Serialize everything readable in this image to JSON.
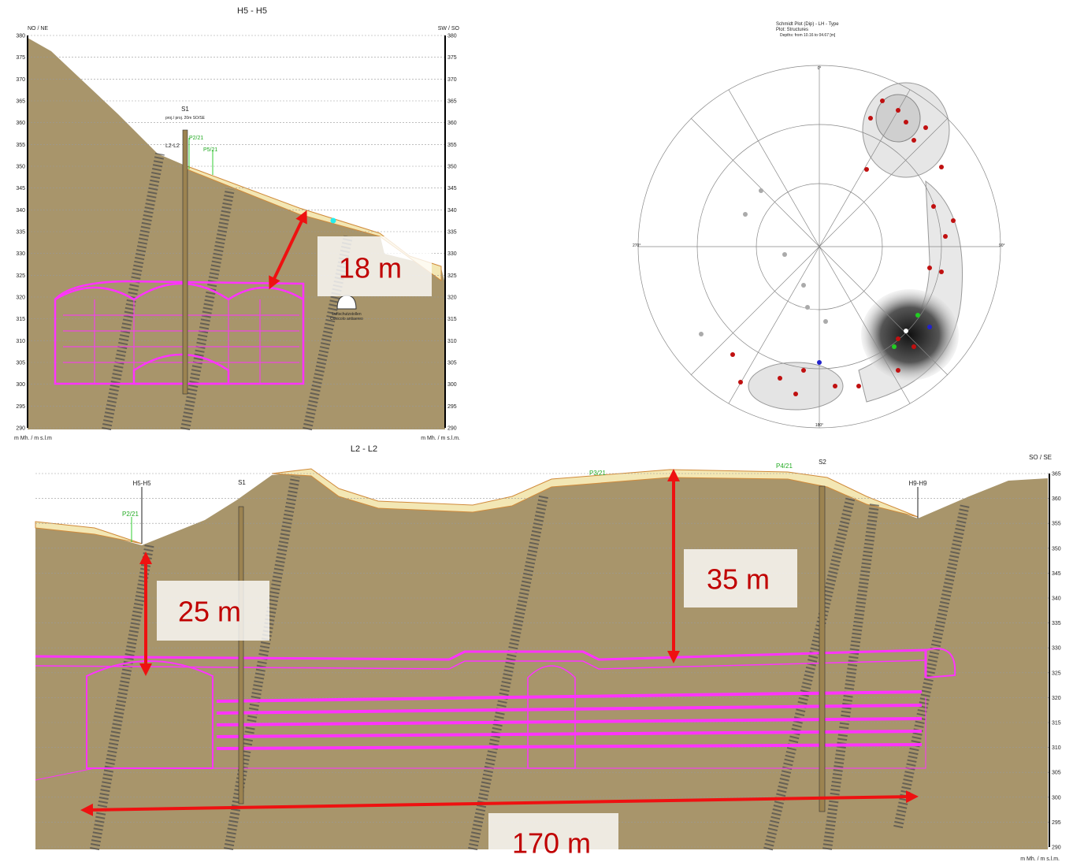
{
  "top_section": {
    "title": "H5 - H5",
    "left_label": "NO / NE",
    "right_label": "SW / SO",
    "elevations": [
      380,
      375,
      370,
      365,
      360,
      355,
      350,
      345,
      340,
      335,
      330,
      325,
      320,
      315,
      310,
      305,
      300,
      295,
      290
    ],
    "unit_left": "m Mh. / m s.l.m",
    "unit_right": "m Mh. / m s.l.m.",
    "borehole": "S1",
    "borehole_note": "proj./ proj. 20m SO/SE",
    "section_mark": "L2-L2",
    "point_1": "P2/21",
    "point_2": "P5/21",
    "tunnel_label_1": "Luftschutzstollen",
    "tunnel_label_2": "Cunicolo antiaereo",
    "distance": "18 m"
  },
  "stereonet": {
    "title": "Schmidt Plot (Dip) - LH - Type",
    "subtitle": "Plot: Structures",
    "depths": "Depths: from 10.16 to 04.67 [m]",
    "north": "0°",
    "east": "90°",
    "south": "180°",
    "west": "270°"
  },
  "bottom_section": {
    "title": "L2 - L2",
    "right_label": "SO / SE",
    "elevations": [
      365,
      360,
      355,
      350,
      345,
      340,
      335,
      330,
      325,
      320,
      315,
      310,
      305,
      300,
      295,
      290
    ],
    "unit_right": "m Mh. / m s.l.m.",
    "marker_1": "H5-H5",
    "marker_2": "S1",
    "marker_3": "S2",
    "marker_4": "H9-H9",
    "point_1": "P2/21",
    "point_2": "P3/21",
    "point_3": "P4/21",
    "distance_1": "25 m",
    "distance_2": "35 m",
    "distance_3": "170 m"
  }
}
